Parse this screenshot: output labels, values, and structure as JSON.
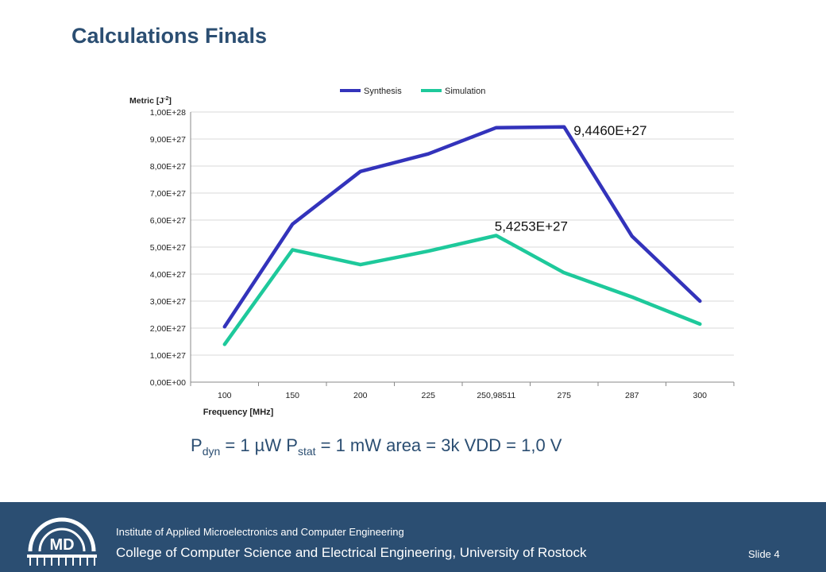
{
  "slide": {
    "title": "Calculations Finals",
    "caption": {
      "p_dyn_sym": "P",
      "p_dyn_sub": "dyn",
      "p_dyn_val": " = 1 µW ",
      "p_stat_sym": "P",
      "p_stat_sub": "stat",
      "p_stat_val": " = 1 mW area = 3k VDD = 1,0 V"
    }
  },
  "footer": {
    "institute": "Institute of Applied Microelectronics and Computer Engineering",
    "college": "College of Computer Science and Electrical Engineering, University of Rostock",
    "slide_number": "Slide 4",
    "logo_text": "MD"
  },
  "colors": {
    "title": "#2b4e72",
    "footer_bg": "#2b4e72",
    "synthesis": "#3333bb",
    "simulation": "#1ec99b"
  },
  "chart_data": {
    "type": "line",
    "categories": [
      "100",
      "150",
      "200",
      "225",
      "250,98511",
      "275",
      "287",
      "300"
    ],
    "series": [
      {
        "name": "Synthesis",
        "color": "#3333bb",
        "values": [
          2.05e+27,
          5.85e+27,
          7.8e+27,
          8.45e+27,
          9.42e+27,
          9.446e+27,
          5.4e+27,
          3e+27
        ]
      },
      {
        "name": "Simulation",
        "color": "#1ec99b",
        "values": [
          1.4e+27,
          4.9e+27,
          4.35e+27,
          4.85e+27,
          5.4253e+27,
          4.05e+27,
          3.15e+27,
          2.15e+27
        ]
      }
    ],
    "ylim": [
      0,
      1e+28
    ],
    "yticks": [
      0,
      1e+27,
      2e+27,
      3e+27,
      4e+27,
      5e+27,
      6e+27,
      7e+27,
      8e+27,
      9e+27,
      1e+28
    ],
    "ytick_labels": [
      "0,00E+00",
      "1,00E+27",
      "2,00E+27",
      "3,00E+27",
      "4,00E+27",
      "5,00E+27",
      "6,00E+27",
      "7,00E+27",
      "8,00E+27",
      "9,00E+27",
      "1,00E+28"
    ],
    "ylabel": "Metric [J",
    "ylabel_sup": "-2",
    "ylabel_end": "]",
    "xlabel": "Frequency [MHz]",
    "legend_position": "top",
    "grid": "horizontal",
    "annotations": [
      {
        "text": "9,4460E+27",
        "series": 0,
        "index": 5
      },
      {
        "text": "5,4253E+27",
        "series": 1,
        "index": 4
      }
    ]
  }
}
